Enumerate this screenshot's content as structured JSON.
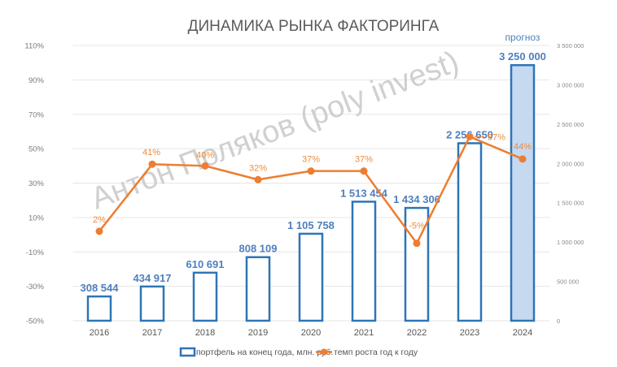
{
  "chart_data": {
    "type": "bar+line",
    "title": "ДИНАМИКА РЫНКА ФАКТОРИНГА",
    "categories": [
      "2016",
      "2017",
      "2018",
      "2019",
      "2020",
      "2021",
      "2022",
      "2023",
      "2024"
    ],
    "series": [
      {
        "name": "портфель на конец года, млн. руб.",
        "type": "bar",
        "axis": "right",
        "values": [
          308544,
          434917,
          610691,
          808109,
          1105758,
          1513454,
          1434306,
          2256650,
          3250000
        ],
        "labels": [
          "308 544",
          "434 917",
          "610 691",
          "808 109",
          "1 105 758",
          "1 513 454",
          "1 434 306",
          "2 256 650",
          "3 250 000"
        ],
        "color": "#2e75b6",
        "forecast_fill": "#c5d9f1"
      },
      {
        "name": "темп роста год к году",
        "type": "line",
        "axis": "left",
        "values": [
          2,
          41,
          40,
          32,
          37,
          37,
          -5,
          57,
          44
        ],
        "labels": [
          "2%",
          "41%",
          "40%",
          "32%",
          "37%",
          "37%",
          "-5%",
          "57%",
          "44%"
        ],
        "color": "#ed7d31"
      }
    ],
    "left_axis": {
      "ticks": [
        "110%",
        "90%",
        "70%",
        "50%",
        "30%",
        "10%",
        "-10%",
        "-30%",
        "-50%"
      ],
      "range": [
        -50,
        110
      ]
    },
    "right_axis": {
      "ticks": [
        "3 500 000",
        "3 000 000",
        "2 500 000",
        "2 000 000",
        "1 500 000",
        "1 000 000",
        "500 000",
        "0"
      ],
      "range": [
        0,
        3500000
      ]
    },
    "forecast_label": "прогноз",
    "forecast_index": 8,
    "grid": true,
    "legend_position": "bottom"
  },
  "watermark": "Антон Поляков (poly invest)"
}
